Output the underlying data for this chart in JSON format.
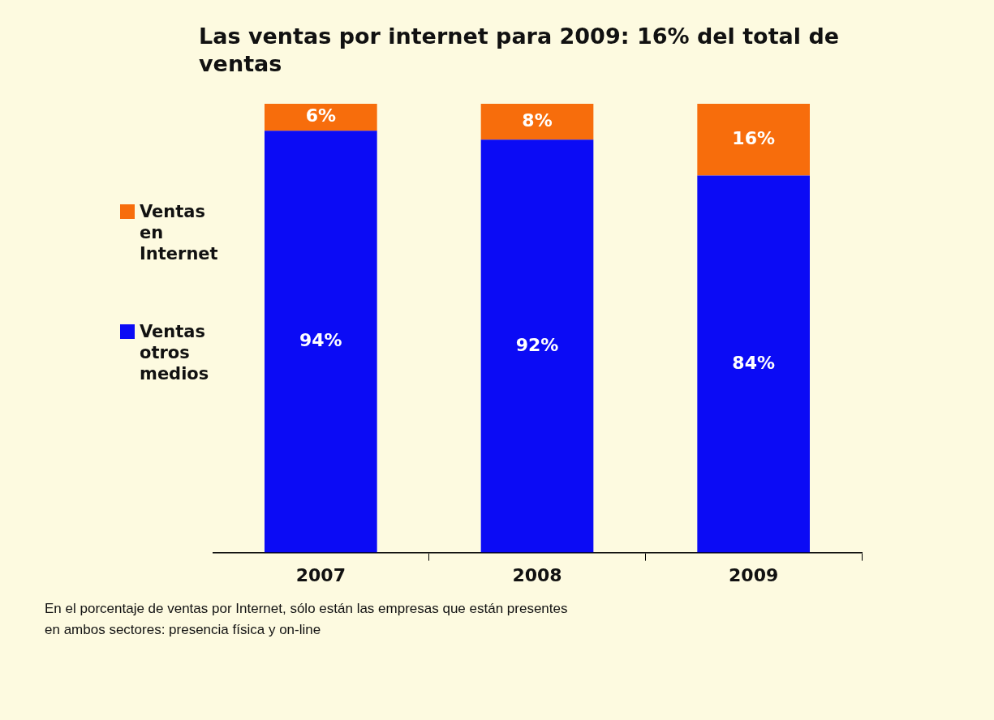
{
  "chart_data": {
    "type": "bar",
    "title": "Las ventas por internet para 2009: 16% del total de ventas",
    "categories": [
      "2007",
      "2008",
      "2009"
    ],
    "stacked": true,
    "series": [
      {
        "name": "Ventas otros medios",
        "color": "#0b0bf5",
        "values": [
          94,
          92,
          84
        ],
        "value_labels": [
          "94%",
          "92%",
          "84%"
        ]
      },
      {
        "name": "Ventas en Internet",
        "color": "#f76d0c",
        "values": [
          6,
          8,
          16
        ],
        "value_labels": [
          "6%",
          "8%",
          "16%"
        ]
      }
    ],
    "legend": "left",
    "grid": false,
    "annotations": [
      "En el porcentaje de ventas por Internet, sólo están las empresas que están presentes en ambos sectores: presencia física y on-line"
    ]
  }
}
